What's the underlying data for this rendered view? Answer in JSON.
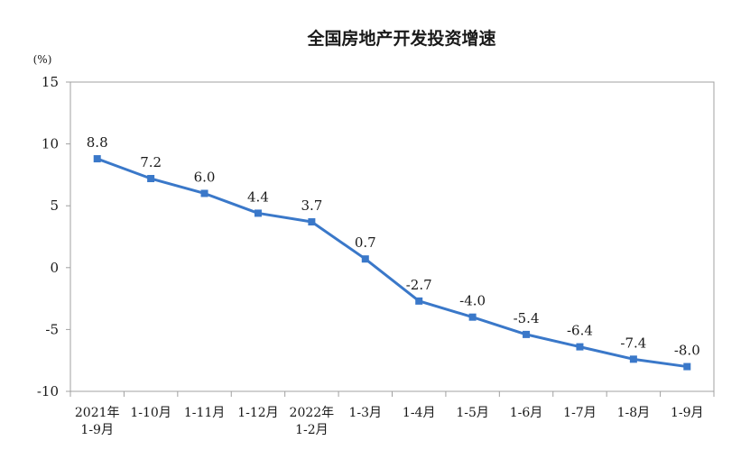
{
  "chart_data": {
    "type": "line",
    "title": "全国房地产开发投资增速",
    "unit_label": "(%)",
    "categories": [
      [
        "2021年",
        "1-9月"
      ],
      [
        "1-10月"
      ],
      [
        "1-11月"
      ],
      [
        "1-12月"
      ],
      [
        "2022年",
        "1-2月"
      ],
      [
        "1-3月"
      ],
      [
        "1-4月"
      ],
      [
        "1-5月"
      ],
      [
        "1-6月"
      ],
      [
        "1-7月"
      ],
      [
        "1-8月"
      ],
      [
        "1-9月"
      ]
    ],
    "values": [
      8.8,
      7.2,
      6.0,
      4.4,
      3.7,
      0.7,
      -2.7,
      -4.0,
      -5.4,
      -6.4,
      -7.4,
      -8.0
    ],
    "data_labels": [
      "8.8",
      "7.2",
      "6.0",
      "4.4",
      "3.7",
      "0.7",
      "-2.7",
      "-4.0",
      "-5.4",
      "-6.4",
      "-7.4",
      "-8.0"
    ],
    "yticks": [
      "15",
      "10",
      "5",
      "0",
      "-5",
      "-10"
    ],
    "ylim": [
      -10,
      15
    ],
    "grid": false,
    "line_color": "#3a78c9"
  }
}
